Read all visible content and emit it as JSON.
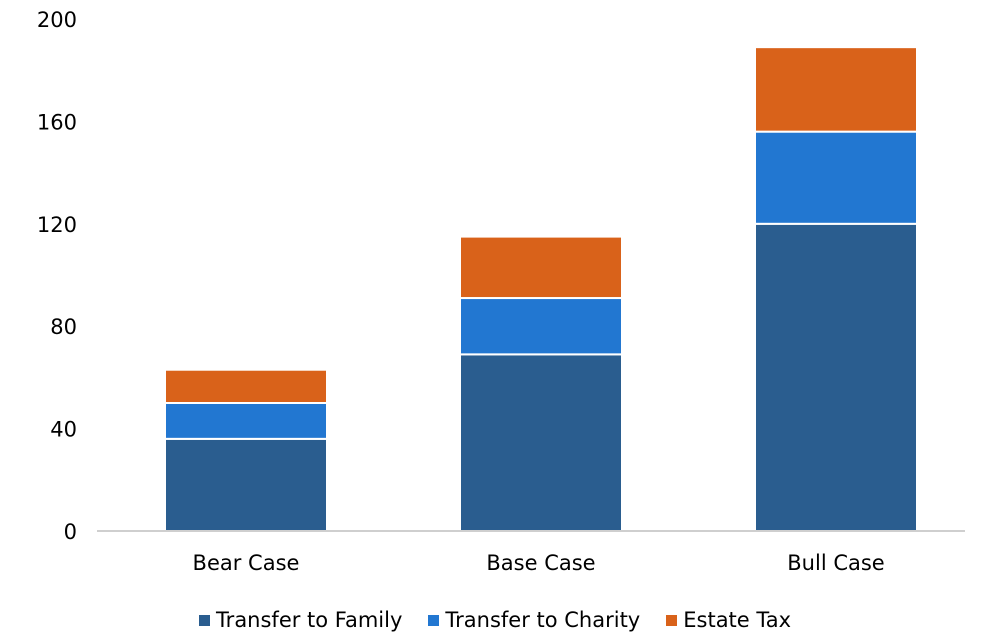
{
  "chart_data": {
    "type": "bar",
    "stacked": true,
    "categories": [
      "Bear Case",
      "Base Case",
      "Bull Case"
    ],
    "series": [
      {
        "name": "Transfer to Family",
        "color": "#2a5d8f",
        "values": [
          36,
          69,
          120
        ]
      },
      {
        "name": "Transfer to Charity",
        "color": "#2277d1",
        "values": [
          14,
          22,
          36
        ]
      },
      {
        "name": "Estate Tax",
        "color": "#d9621a",
        "values": [
          13,
          24,
          33
        ]
      }
    ],
    "yticks": [
      "0",
      "40",
      "80",
      "120",
      "160",
      "200"
    ],
    "ylim": [
      0,
      200
    ],
    "grid": false,
    "legend_position": "bottom",
    "title": "",
    "xlabel": "",
    "ylabel": ""
  }
}
